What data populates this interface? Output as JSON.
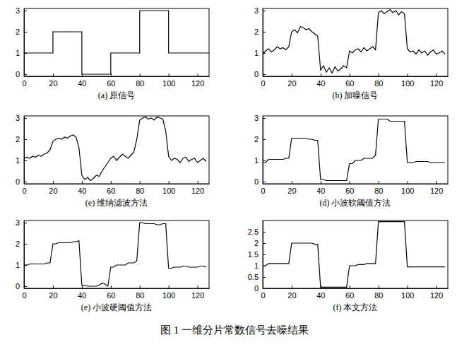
{
  "caption": "图 1 一维分片常数信号去噪结果",
  "chart_data": [
    {
      "type": "line",
      "title": "(a) 原信号",
      "x": [
        0,
        20,
        20,
        40,
        40,
        60,
        60,
        80,
        80,
        100,
        100,
        128
      ],
      "series": [
        {
          "color": "#000000",
          "values": [
            1,
            1,
            2,
            2,
            0,
            0,
            1,
            1,
            3,
            3,
            1,
            1
          ]
        }
      ],
      "xlim": [
        0,
        128
      ],
      "ylim": [
        -0.1,
        3.1
      ],
      "xticks": [
        0,
        20,
        40,
        60,
        80,
        100,
        120
      ],
      "yticks": [
        0,
        1,
        2,
        3
      ]
    },
    {
      "type": "line",
      "title": "(b) 加噪信号",
      "x": [
        0,
        2,
        4,
        6,
        8,
        10,
        12,
        14,
        16,
        18,
        20,
        22,
        24,
        26,
        28,
        30,
        32,
        34,
        36,
        38,
        40,
        42,
        44,
        46,
        48,
        50,
        52,
        54,
        56,
        58,
        60,
        62,
        64,
        66,
        68,
        70,
        72,
        74,
        76,
        78,
        80,
        82,
        84,
        86,
        88,
        90,
        92,
        94,
        96,
        98,
        100,
        102,
        104,
        106,
        108,
        110,
        112,
        114,
        116,
        118,
        120,
        122,
        124,
        126
      ],
      "series": [
        {
          "color": "#000000",
          "values": [
            0.95,
            1.1,
            1.2,
            1.05,
            1.15,
            1.3,
            1.2,
            1.25,
            1.15,
            1.3,
            2.0,
            2.1,
            1.95,
            2.25,
            2.2,
            2.1,
            2.15,
            2.0,
            1.9,
            1.8,
            0.2,
            0.4,
            0.1,
            0.3,
            0.05,
            0.35,
            0.15,
            0.25,
            0.4,
            0.3,
            1.1,
            1.0,
            1.15,
            1.2,
            1.05,
            1.25,
            1.1,
            1.2,
            1.3,
            1.15,
            2.9,
            3.0,
            2.85,
            2.95,
            3.05,
            2.9,
            3.0,
            2.8,
            2.95,
            2.85,
            1.2,
            1.05,
            1.1,
            0.95,
            1.15,
            1.0,
            1.1,
            0.9,
            1.05,
            1.15,
            0.95,
            1.0,
            1.1,
            0.95
          ]
        }
      ],
      "xlim": [
        0,
        128
      ],
      "ylim": [
        -0.1,
        3.1
      ],
      "xticks": [
        0,
        20,
        40,
        60,
        80,
        100,
        120
      ],
      "yticks": [
        0,
        1,
        2,
        3
      ]
    },
    {
      "type": "line",
      "title": "(e) 维纳滤波方法",
      "x": [
        0,
        2,
        4,
        6,
        8,
        10,
        12,
        14,
        16,
        18,
        20,
        22,
        24,
        26,
        28,
        30,
        32,
        34,
        36,
        38,
        40,
        42,
        44,
        46,
        48,
        50,
        52,
        54,
        56,
        58,
        60,
        62,
        64,
        66,
        68,
        70,
        72,
        74,
        76,
        78,
        80,
        82,
        84,
        86,
        88,
        90,
        92,
        94,
        96,
        98,
        100,
        102,
        104,
        106,
        108,
        110,
        112,
        114,
        116,
        118,
        120,
        122,
        124,
        126
      ],
      "series": [
        {
          "color": "#000000",
          "values": [
            1.1,
            1.15,
            1.1,
            1.2,
            1.15,
            1.25,
            1.2,
            1.3,
            1.35,
            1.5,
            1.9,
            2.0,
            2.05,
            2.0,
            2.1,
            2.05,
            2.15,
            2.2,
            2.1,
            1.6,
            0.3,
            0.1,
            0.2,
            0.05,
            0.15,
            0.3,
            0.25,
            0.5,
            0.7,
            0.9,
            1.1,
            1.2,
            1.0,
            1.15,
            1.3,
            1.2,
            1.1,
            1.25,
            1.4,
            2.0,
            2.9,
            3.0,
            3.05,
            2.95,
            3.0,
            2.9,
            3.05,
            3.0,
            2.95,
            2.4,
            1.2,
            1.0,
            1.1,
            1.05,
            0.9,
            1.1,
            1.15,
            0.95,
            1.05,
            1.1,
            0.9,
            1.0,
            1.1,
            0.95
          ]
        }
      ],
      "xlim": [
        0,
        128
      ],
      "ylim": [
        -0.1,
        3.1
      ],
      "xticks": [
        0,
        20,
        40,
        60,
        80,
        100,
        120
      ],
      "yticks": [
        0,
        1,
        2,
        3
      ]
    },
    {
      "type": "line",
      "title": "(d) 小波软阈值方法",
      "x": [
        0,
        2,
        4,
        6,
        8,
        10,
        12,
        14,
        16,
        18,
        20,
        22,
        24,
        26,
        28,
        30,
        32,
        34,
        36,
        38,
        40,
        42,
        44,
        46,
        48,
        50,
        52,
        54,
        56,
        58,
        60,
        62,
        64,
        66,
        68,
        70,
        72,
        74,
        76,
        78,
        80,
        82,
        84,
        86,
        88,
        90,
        92,
        94,
        96,
        98,
        100,
        102,
        104,
        106,
        108,
        110,
        112,
        114,
        116,
        118,
        120,
        122,
        124,
        126
      ],
      "series": [
        {
          "color": "#000000",
          "values": [
            0.9,
            0.9,
            1.05,
            1.05,
            1.05,
            1.05,
            1.05,
            1.05,
            1.1,
            1.1,
            2.05,
            2.05,
            2.05,
            2.05,
            2.05,
            2.05,
            2.0,
            2.0,
            1.95,
            1.95,
            0.1,
            0.1,
            0.05,
            0.05,
            0.05,
            0.05,
            0.05,
            0.05,
            0.05,
            0.05,
            0.85,
            0.85,
            1.0,
            1.0,
            1.0,
            1.1,
            1.1,
            1.1,
            1.1,
            1.25,
            2.95,
            2.95,
            2.95,
            2.95,
            2.85,
            2.85,
            2.85,
            2.85,
            2.85,
            2.85,
            0.9,
            0.9,
            0.9,
            0.95,
            0.95,
            0.95,
            0.95,
            0.95,
            0.9,
            0.9,
            0.9,
            0.9,
            0.9,
            0.9
          ]
        }
      ],
      "xlim": [
        0,
        128
      ],
      "ylim": [
        -0.1,
        3.1
      ],
      "xticks": [
        0,
        20,
        40,
        60,
        80,
        100,
        120
      ],
      "yticks": [
        0,
        1,
        2,
        3
      ]
    },
    {
      "type": "line",
      "title": "(e) 小波硬阈值方法",
      "x": [
        0,
        2,
        4,
        6,
        8,
        10,
        12,
        14,
        16,
        18,
        20,
        22,
        24,
        26,
        28,
        30,
        32,
        34,
        36,
        38,
        40,
        42,
        44,
        46,
        48,
        50,
        52,
        54,
        56,
        58,
        60,
        62,
        64,
        66,
        68,
        70,
        72,
        74,
        76,
        78,
        80,
        82,
        84,
        86,
        88,
        90,
        92,
        94,
        96,
        98,
        100,
        102,
        104,
        106,
        108,
        110,
        112,
        114,
        116,
        118,
        120,
        122,
        124,
        126
      ],
      "series": [
        {
          "color": "#000000",
          "values": [
            1.0,
            1.0,
            1.05,
            1.05,
            1.05,
            1.05,
            1.05,
            1.05,
            1.1,
            1.1,
            2.0,
            2.0,
            2.05,
            2.05,
            2.05,
            2.05,
            2.05,
            2.1,
            2.1,
            2.15,
            0.05,
            0.05,
            0.0,
            0.0,
            0.0,
            0.0,
            0.05,
            0.15,
            0.1,
            0.0,
            0.9,
            0.9,
            1.0,
            1.0,
            1.0,
            1.0,
            1.1,
            1.1,
            1.1,
            1.2,
            3.0,
            3.0,
            2.95,
            2.95,
            2.95,
            2.95,
            2.9,
            2.9,
            2.95,
            2.95,
            0.85,
            0.85,
            0.9,
            0.9,
            0.9,
            0.95,
            0.95,
            0.9,
            0.9,
            0.9,
            0.9,
            0.95,
            0.95,
            0.9
          ]
        }
      ],
      "xlim": [
        0,
        128
      ],
      "ylim": [
        -0.1,
        3.1
      ],
      "xticks": [
        0,
        20,
        40,
        60,
        80,
        100,
        120
      ],
      "yticks": [
        0,
        1,
        2,
        3
      ]
    },
    {
      "type": "line",
      "title": "(f) 本文方法",
      "x": [
        0,
        2,
        4,
        6,
        8,
        10,
        12,
        14,
        16,
        18,
        20,
        22,
        24,
        26,
        28,
        30,
        32,
        34,
        36,
        38,
        40,
        42,
        44,
        46,
        48,
        50,
        52,
        54,
        56,
        58,
        60,
        62,
        64,
        66,
        68,
        70,
        72,
        74,
        76,
        78,
        80,
        82,
        84,
        86,
        88,
        90,
        92,
        94,
        96,
        98,
        100,
        102,
        104,
        106,
        108,
        110,
        112,
        114,
        116,
        118,
        120,
        122,
        124,
        126
      ],
      "series": [
        {
          "color": "#000000",
          "values": [
            1.0,
            1.0,
            1.1,
            1.1,
            1.1,
            1.1,
            1.1,
            1.1,
            1.1,
            1.1,
            2.0,
            2.0,
            2.0,
            2.0,
            2.0,
            2.0,
            2.0,
            2.0,
            1.95,
            1.95,
            0.05,
            0.05,
            0.05,
            0.05,
            0.05,
            0.05,
            0.05,
            0.05,
            0.05,
            0.05,
            1.0,
            1.0,
            1.0,
            1.05,
            1.05,
            1.05,
            1.1,
            1.1,
            1.1,
            1.1,
            2.95,
            2.95,
            2.95,
            2.95,
            2.95,
            2.95,
            2.95,
            2.95,
            2.95,
            2.95,
            0.95,
            0.95,
            0.95,
            0.95,
            0.95,
            0.95,
            0.95,
            0.95,
            0.95,
            0.95,
            0.95,
            0.95,
            0.95,
            0.95
          ]
        }
      ],
      "xlim": [
        0,
        128
      ],
      "ylim": [
        0,
        3
      ],
      "xticks": [
        0,
        20,
        40,
        60,
        80,
        100,
        120
      ],
      "yticks": [
        0,
        0.5,
        1,
        1.5,
        2,
        2.5
      ]
    }
  ]
}
